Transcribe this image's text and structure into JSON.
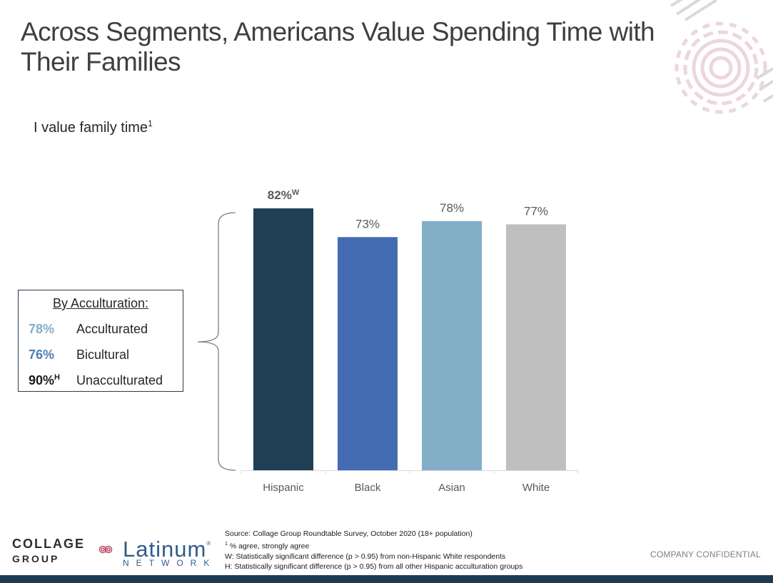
{
  "title": "Across Segments, Americans Value Spending Time with Their Families",
  "subtitle": {
    "text": "I value family time",
    "sup": "1"
  },
  "chart_data": {
    "type": "bar",
    "categories": [
      "Hispanic",
      "Black",
      "Asian",
      "White"
    ],
    "values": [
      82,
      73,
      78,
      77
    ],
    "value_labels": [
      "82%",
      "73%",
      "78%",
      "77%"
    ],
    "value_label_sup": [
      "W",
      "",
      "",
      ""
    ],
    "bold_labels": [
      true,
      false,
      false,
      false
    ],
    "colors": [
      "#203f55",
      "#436cb2",
      "#82aec8",
      "#bfbfbf"
    ],
    "ylim": [
      0,
      82
    ],
    "grid": false,
    "legend": "none"
  },
  "acculturation": {
    "title": "By Acculturation:",
    "rows": [
      {
        "pct": "78%",
        "sup": "",
        "name": "Acculturated",
        "color": "#82aec8"
      },
      {
        "pct": "76%",
        "sup": "",
        "name": "Bicultural",
        "color": "#4a82b4"
      },
      {
        "pct": "90%",
        "sup": "H",
        "name": "Unacculturated",
        "color": "#1a1a1a"
      }
    ]
  },
  "footer": {
    "source": "Source: Collage Group Roundtable Survey, October 2020 (18+ population)",
    "note1_sup": "1",
    "note1": " % agree, strongly agree",
    "note2": "W: Statistically significant difference (p > 0.95) from non-Hispanic White respondents",
    "note3": "H: Statistically significant difference (p > 0.95) from all other Hispanic acculturation groups",
    "confidential": "COMPANY CONFIDENTIAL"
  },
  "logos": {
    "collage_line1": "COLLAGE",
    "collage_line2": "GROUP",
    "latinum": "Latinum",
    "latinum_mark": "®",
    "network": "NETWORK"
  }
}
